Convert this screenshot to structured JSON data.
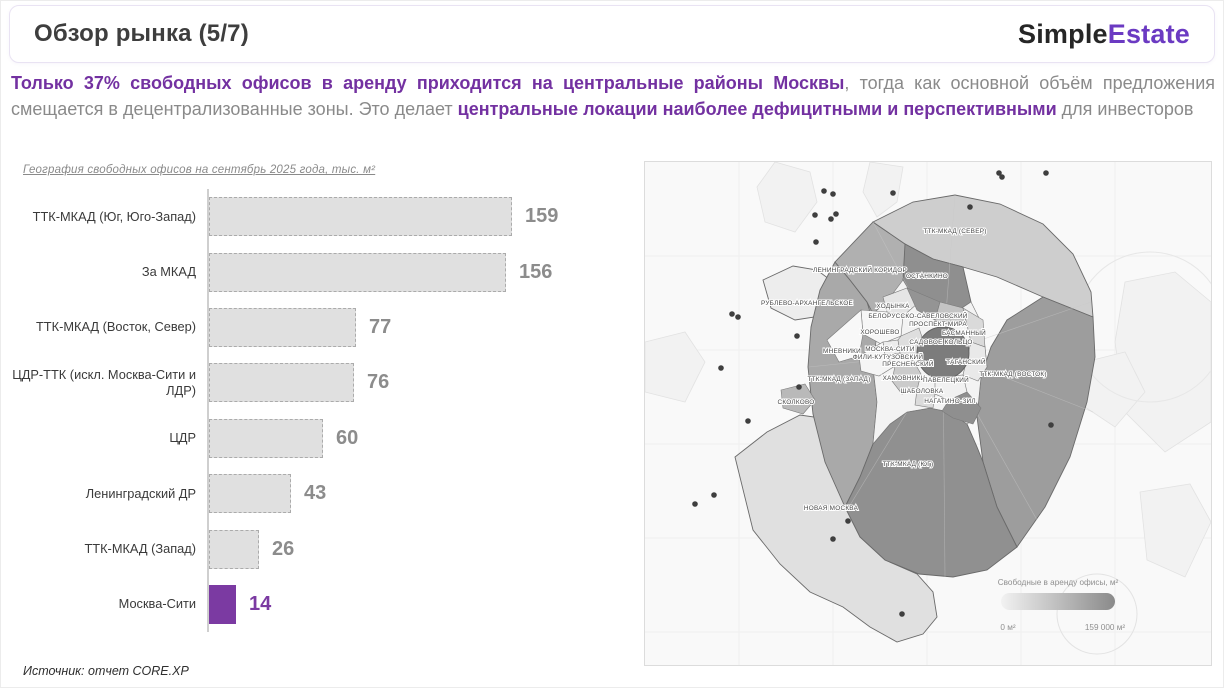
{
  "header": {
    "title": "Обзор рынка (5/7)",
    "logo": {
      "part1": "Simple",
      "part2": "Estate"
    }
  },
  "subtitle": {
    "segments": [
      {
        "text": "Только 37% свободных офисов в аренду приходится на центральные районы Москвы",
        "emphasis": true
      },
      {
        "text": ", тогда как основной объём предложения смещается в децентрализованные зоны. Это делает ",
        "emphasis": false
      },
      {
        "text": "центральные локации наиболее дефицитными и перспективными",
        "emphasis": true
      },
      {
        "text": " для инвесторов",
        "emphasis": false
      }
    ]
  },
  "chart_data": {
    "type": "bar",
    "orientation": "horizontal",
    "title": "География свободных офисов на сентябрь 2025 года, тыс. м²",
    "categories": [
      "ТТК-МКАД (Юг, Юго-Запад)",
      "За МКАД",
      "ТТК-МКАД (Восток, Север)",
      "ЦДР-ТТК (искл. Москва-Сити и ЛДР)",
      "ЦДР",
      "Ленинградский ДР",
      "ТТК-МКАД (Запад)",
      "Москва-Сити"
    ],
    "values": [
      159,
      156,
      77,
      76,
      60,
      43,
      26,
      14
    ],
    "xlim": [
      0,
      170
    ],
    "highlight_index": 7,
    "bar_color": "#E0E0E0",
    "bar_border_color": "#ABABAB",
    "highlight_color": "#7B3AA2",
    "value_label_color": "#8C8C8C",
    "grid": false,
    "legend_position": "none"
  },
  "source": "Источник: отчет CORE.XP",
  "map": {
    "region_labels": [
      "ТТК-МКАД (СЕВЕР)",
      "ЛЕНИНГРАДСКИЙ КОРИДОР",
      "ОСТАНКИНО",
      "РУБЛЕВО-АРХАНГЕЛЬСКОЕ",
      "ХОДЫНКА",
      "БЕЛОРУССКО-САВЕЛОВСКИЙ",
      "ПРОСПЕКТ МИРА",
      "ХОРОШЕВО",
      "БАСМАННЫЙ",
      "САДОВОЕ КОЛЬЦО",
      "МНЕВНИКИ",
      "МОСКВА-СИТИ",
      "ФИЛИ-КУТУЗОВСКИЙ",
      "ПРЕСНЕНСКИЙ",
      "ТАГАНСКИЙ",
      "ТТК-МКАД (ЗАПАД)",
      "ХАМОВНИКИ",
      "ПАВЕЛЕЦКИЙ",
      "ТТК-МКАД (ВОСТОК)",
      "ШАБОЛОВКА",
      "НАГАТИНО-ЗИЛ",
      "СКОЛКОВО",
      "ТТК-МКАД (ЮГ)",
      "НОВАЯ МОСКВА"
    ],
    "legend": {
      "title": "Свободные в аренду офисы, м²",
      "min": "0 м²",
      "max": "159 000 м²"
    }
  },
  "colors": {
    "accent": "#7B3AA2",
    "logo_accent": "#6B3AC2",
    "emphasis_text": "#7331A1",
    "body_gray": "#8A8A8A",
    "title_dark": "#3E3E3E"
  }
}
